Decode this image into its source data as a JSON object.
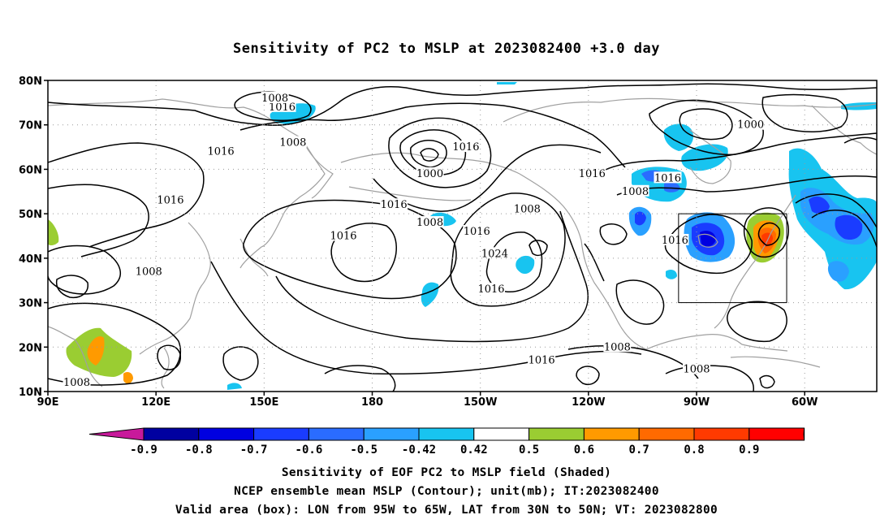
{
  "title": "Sensitivity of PC2 to MSLP at 2023082400 +3.0 day",
  "axes": {
    "lat_labels": [
      "80N",
      "70N",
      "60N",
      "50N",
      "40N",
      "30N",
      "20N",
      "10N"
    ],
    "lon_labels": [
      "90E",
      "120E",
      "150E",
      "180",
      "150W",
      "120W",
      "90W",
      "60W"
    ]
  },
  "contour_labels": [
    {
      "text": "1016",
      "lon": 155,
      "lat": 74
    },
    {
      "text": "1008",
      "lon": 153,
      "lat": 76
    },
    {
      "text": "1008",
      "lon": 158,
      "lat": 66
    },
    {
      "text": "1016",
      "lon": 138,
      "lat": 64
    },
    {
      "text": "1016",
      "lon": 186,
      "lat": 52
    },
    {
      "text": "1016",
      "lon": 206,
      "lat": 65
    },
    {
      "text": "1000",
      "lon": 196,
      "lat": 59
    },
    {
      "text": "1008",
      "lon": 223,
      "lat": 51
    },
    {
      "text": "1016",
      "lon": 241,
      "lat": 59
    },
    {
      "text": "1016",
      "lon": 209,
      "lat": 46
    },
    {
      "text": "1008",
      "lon": 196,
      "lat": 48
    },
    {
      "text": "1024",
      "lon": 214,
      "lat": 41
    },
    {
      "text": "1016",
      "lon": 172,
      "lat": 45
    },
    {
      "text": "1016",
      "lon": 213,
      "lat": 33
    },
    {
      "text": "1016",
      "lon": 264,
      "lat": 44
    },
    {
      "text": "1016",
      "lon": 262,
      "lat": 58
    },
    {
      "text": "1008",
      "lon": 253,
      "lat": 55
    },
    {
      "text": "1000",
      "lon": 285,
      "lat": 70
    },
    {
      "text": "1008",
      "lon": 98,
      "lat": 12
    },
    {
      "text": "1008",
      "lon": 118,
      "lat": 37
    },
    {
      "text": "1016",
      "lon": 124,
      "lat": 53
    },
    {
      "text": "1016",
      "lon": 227,
      "lat": 17
    },
    {
      "text": "1008",
      "lon": 248,
      "lat": 20
    },
    {
      "text": "1008",
      "lon": 270,
      "lat": 15
    }
  ],
  "colorbar": {
    "labels": [
      "-0.9",
      "-0.8",
      "-0.7",
      "-0.6",
      "-0.5",
      "-0.42",
      "0.42",
      "0.5",
      "0.6",
      "0.7",
      "0.8",
      "0.9"
    ],
    "colors": [
      "#0000a0",
      "#0000e0",
      "#1a3cff",
      "#2a6cff",
      "#2aa0ff",
      "#18c4f0",
      "#ffffff",
      "#9acd32",
      "#ff9a00",
      "#ff6a00",
      "#ff3a00",
      "#ff0000"
    ],
    "low_end_color": "#c8199b",
    "high_end_color": "#f4a0c8"
  },
  "valid_box": {
    "lon_min": -95,
    "lon_max": -65,
    "lat_min": 30,
    "lat_max": 50
  },
  "captions": {
    "line1": "Sensitivity of EOF PC2 to MSLP field (Shaded)",
    "line2": "NCEP ensemble mean MSLP (Contour); unit(mb); IT:2023082400",
    "line3": "Valid area (box): LON from 95W to 65W, LAT from 30N to 50N; VT: 2023082800"
  }
}
